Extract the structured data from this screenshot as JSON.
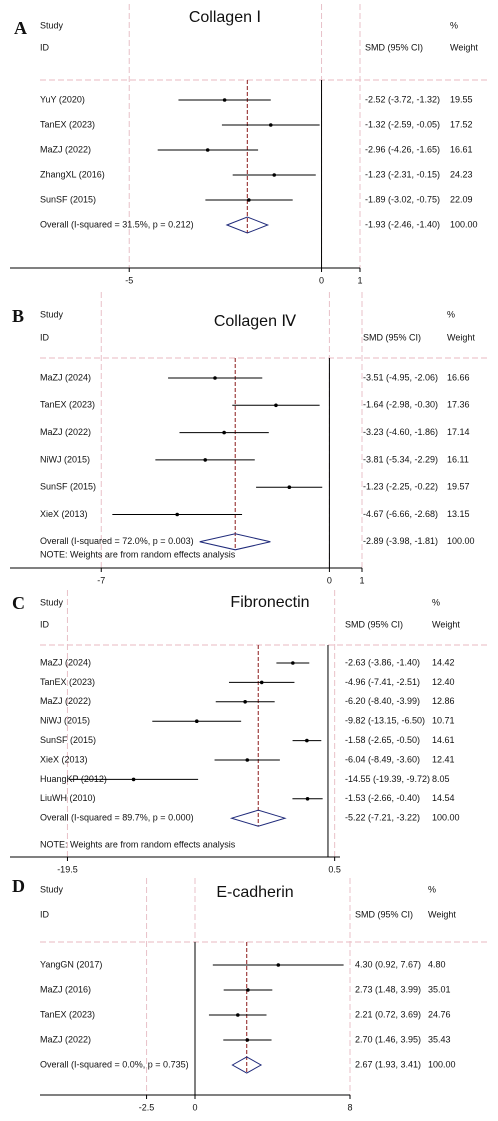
{
  "chart_data": [
    {
      "type": "forest",
      "panel_label": "A",
      "title": "Collagen Ⅰ",
      "headers": {
        "study": "Study",
        "id": "ID",
        "effect": "SMD (95% CI)",
        "percent": "%",
        "weight": "Weight"
      },
      "categories": [
        "YuY (2020)",
        "TanEX (2023)",
        "MaZJ (2022)",
        "ZhangXL (2016)",
        "SunSF (2015)"
      ],
      "values": [
        -2.52,
        -1.32,
        -2.96,
        -1.23,
        -1.89
      ],
      "lower": [
        -3.72,
        -2.59,
        -4.26,
        -2.31,
        -3.02
      ],
      "upper": [
        -1.32,
        -0.05,
        -1.65,
        -0.15,
        -0.75
      ],
      "value_labels": [
        "-2.52 (-3.72, -1.32)",
        "-1.32 (-2.59, -0.05)",
        "-2.96 (-4.26, -1.65)",
        "-1.23 (-2.31, -0.15)",
        "-1.89 (-3.02, -0.75)"
      ],
      "weights": [
        "19.55",
        "17.52",
        "16.61",
        "24.23",
        "22.09"
      ],
      "overall": {
        "name": "Overall  (I-squared = 31.5%, p = 0.212)",
        "value": -1.93,
        "lower": -2.46,
        "upper": -1.4,
        "value_label": "-1.93 (-2.46, -1.40)",
        "weight": "100.00"
      },
      "xlim": [
        -8.1,
        1
      ],
      "xticks": [
        -5,
        0,
        1
      ],
      "grid": true,
      "color": "#000000",
      "overall_color": "#1f2a7a",
      "overall_line_color": "#8b1a1a"
    },
    {
      "type": "forest",
      "panel_label": "B",
      "title": "Collagen Ⅳ",
      "headers": {
        "study": "Study",
        "id": "ID",
        "effect": "SMD (95% CI)",
        "percent": "%",
        "weight": "Weight"
      },
      "categories": [
        "MaZJ (2024)",
        "TanEX (2023)",
        "MaZJ (2022)",
        "NiWJ (2015)",
        "SunSF (2015)",
        "XieX (2013)"
      ],
      "values": [
        -3.51,
        -1.64,
        -3.23,
        -3.81,
        -1.23,
        -4.67
      ],
      "lower": [
        -4.95,
        -2.98,
        -4.6,
        -5.34,
        -2.25,
        -6.66
      ],
      "upper": [
        -2.06,
        -0.3,
        -1.86,
        -2.29,
        -0.22,
        -2.68
      ],
      "value_labels": [
        "-3.51 (-4.95, -2.06)",
        "-1.64 (-2.98, -0.30)",
        "-3.23 (-4.60, -1.86)",
        "-3.81 (-5.34, -2.29)",
        "-1.23 (-2.25, -0.22)",
        "-4.67 (-6.66, -2.68)"
      ],
      "weights": [
        "16.66",
        "17.36",
        "17.14",
        "16.11",
        "19.57",
        "13.15"
      ],
      "overall": {
        "name": "Overall  (I-squared = 72.0%, p = 0.003)",
        "value": -2.89,
        "lower": -3.98,
        "upper": -1.81,
        "value_label": "-2.89 (-3.98, -1.81)",
        "weight": "100.00"
      },
      "note": "NOTE: Weights are from random effects analysis",
      "xlim": [
        -9.8,
        1
      ],
      "xticks": [
        -7,
        0,
        1
      ],
      "grid": true,
      "color": "#000000",
      "overall_color": "#1f2a7a",
      "overall_line_color": "#8b1a1a"
    },
    {
      "type": "forest",
      "panel_label": "C",
      "title": "Fibronectin",
      "headers": {
        "study": "Study",
        "id": "ID",
        "effect": "SMD (95% CI)",
        "percent": "%",
        "weight": "Weight"
      },
      "categories": [
        "MaZJ (2024)",
        "TanEX (2023)",
        "MaZJ (2022)",
        "NiWJ (2015)",
        "SunSF (2015)",
        "XieX (2013)",
        "HuangKP (2012)",
        "LiuWH (2010)"
      ],
      "values": [
        -2.63,
        -4.96,
        -6.2,
        -9.82,
        -1.58,
        -6.04,
        -14.55,
        -1.53
      ],
      "lower": [
        -3.86,
        -7.41,
        -8.4,
        -13.15,
        -2.65,
        -8.49,
        -19.39,
        -2.66
      ],
      "upper": [
        -1.4,
        -2.51,
        -3.99,
        -6.5,
        -0.5,
        -3.6,
        -9.72,
        -0.4
      ],
      "value_labels": [
        "-2.63 (-3.86, -1.40)",
        "-4.96 (-7.41, -2.51)",
        "-6.20 (-8.40, -3.99)",
        "-9.82 (-13.15, -6.50)",
        "-1.58 (-2.65, -0.50)",
        "-6.04 (-8.49, -3.60)",
        "-14.55 (-19.39, -9.72)",
        "-1.53 (-2.66, -0.40)"
      ],
      "weights": [
        "14.42",
        "12.40",
        "12.86",
        "10.71",
        "14.61",
        "12.41",
        "8.05",
        "14.54"
      ],
      "overall": {
        "name": "Overall  (I-squared = 89.7%, p = 0.000)",
        "value": -5.22,
        "lower": -7.21,
        "upper": -3.22,
        "value_label": "-5.22 (-7.21, -3.22)",
        "weight": "100.00"
      },
      "note": "NOTE: Weights are from random effects analysis",
      "xlim": [
        -23.8,
        0.9
      ],
      "xticks": [
        -19.5,
        0.5
      ],
      "grid": true,
      "color": "#000000",
      "overall_color": "#1f2a7a",
      "overall_line_color": "#8b1a1a"
    },
    {
      "type": "forest",
      "panel_label": "D",
      "title": "E-cadherin",
      "headers": {
        "study": "Study",
        "id": "ID",
        "effect": "SMD (95% CI)",
        "percent": "%",
        "weight": "Weight"
      },
      "categories": [
        "YangGN (2017)",
        "MaZJ (2016)",
        "TanEX (2023)",
        "MaZJ (2022)"
      ],
      "values": [
        4.3,
        2.73,
        2.21,
        2.7
      ],
      "lower": [
        0.92,
        1.48,
        0.72,
        1.46
      ],
      "upper": [
        7.67,
        3.99,
        3.69,
        3.95
      ],
      "value_labels": [
        "4.30 (0.92, 7.67)",
        "2.73 (1.48, 3.99)",
        "2.21 (0.72, 3.69)",
        "2.70 (1.46, 3.95)"
      ],
      "weights": [
        "4.80",
        "35.01",
        "24.76",
        "35.43"
      ],
      "overall": {
        "name": "Overall  (I-squared = 0.0%, p = 0.735)",
        "value": 2.67,
        "lower": 1.93,
        "upper": 3.41,
        "value_label": "2.67 (1.93, 3.41)",
        "weight": "100.00"
      },
      "xlim": [
        -8,
        8
      ],
      "xticks": [
        -2.5,
        0,
        8
      ],
      "grid": true,
      "color": "#000000",
      "overall_color": "#1f2a7a",
      "overall_line_color": "#8b1a1a"
    }
  ]
}
